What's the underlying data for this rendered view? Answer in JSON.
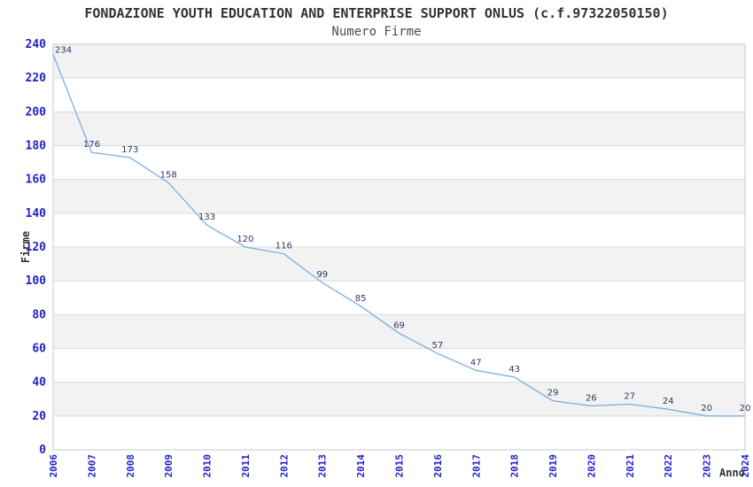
{
  "chart_data": {
    "type": "line",
    "title": "FONDAZIONE YOUTH EDUCATION AND ENTERPRISE SUPPORT ONLUS (c.f.97322050150)",
    "subtitle": "Numero Firme",
    "xlabel": "Anno",
    "ylabel": "Firme",
    "categories": [
      "2006",
      "2007",
      "2008",
      "2009",
      "2010",
      "2011",
      "2012",
      "2013",
      "2014",
      "2015",
      "2016",
      "2017",
      "2018",
      "2019",
      "2020",
      "2021",
      "2022",
      "2023",
      "2024"
    ],
    "series": [
      {
        "name": "Numero Firme",
        "values": [
          234,
          176,
          173,
          158,
          133,
          120,
          116,
          99,
          85,
          69,
          57,
          47,
          43,
          29,
          26,
          27,
          24,
          20,
          20
        ]
      }
    ],
    "ylim": [
      0,
      240
    ],
    "ytick_step": 20,
    "grid": true,
    "alternating_bands": true,
    "legend": "none",
    "colors": {
      "line": "#7aaede",
      "tick_label": "#2222cc",
      "data_label": "#333366",
      "band": "#f2f2f2",
      "gridline": "#dcdcdc",
      "frame": "#c9c9c9",
      "title": "#333333",
      "subtitle": "#4d4d4d",
      "axis_title": "#333333",
      "background": "#ffffff"
    }
  }
}
